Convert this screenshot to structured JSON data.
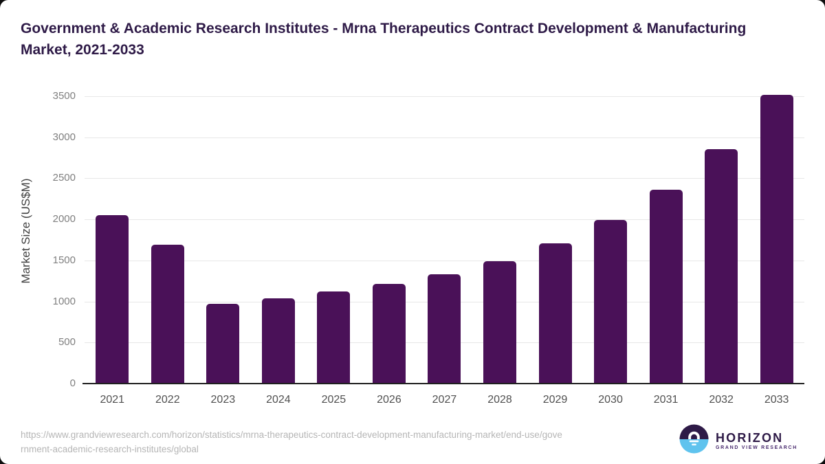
{
  "page": {
    "outer_background": "#0d0d0d",
    "card_background": "#ffffff"
  },
  "header": {
    "title": "Government & Academic Research Institutes - Mrna Therapeutics Contract Development & Manufacturing Market, 2021-2033",
    "title_color": "#2e1a47"
  },
  "chart_data": {
    "type": "bar",
    "title": "Government & Academic Research Institutes - Mrna Therapeutics Contract Development & Manufacturing Market, 2021-2033",
    "categories": [
      "2021",
      "2022",
      "2023",
      "2024",
      "2025",
      "2026",
      "2027",
      "2028",
      "2029",
      "2030",
      "2031",
      "2032",
      "2033"
    ],
    "values": [
      2050,
      1690,
      970,
      1035,
      1120,
      1215,
      1335,
      1490,
      1705,
      1990,
      2360,
      2855,
      3520
    ],
    "xlabel": "",
    "ylabel": "Market Size (US$M)",
    "ylim": [
      0,
      3500
    ],
    "yticks": [
      0,
      500,
      1000,
      1500,
      2000,
      2500,
      3000,
      3500
    ],
    "grid": true,
    "legend_position": "none",
    "bar_color": "#4a1158",
    "gridline_color": "#e7e7e7",
    "axis_line_color": "#1f1f1f",
    "ytick_label_color": "#7f7f7f",
    "xtick_label_color": "#4f4f4f"
  },
  "footer": {
    "url_line1": "https://www.grandviewresearch.com/horizon/statistics/mrna-therapeutics-contract-development-manufacturing-market/end-use/gove",
    "url_line2": "rnment-academic-research-institutes/global",
    "logo": {
      "name": "HORIZON",
      "subtitle": "GRAND VIEW RESEARCH",
      "icon": "horizon-sun-circle-icon",
      "icon_top_color": "#2e1a47",
      "icon_bottom_color": "#5fc3ee"
    }
  }
}
